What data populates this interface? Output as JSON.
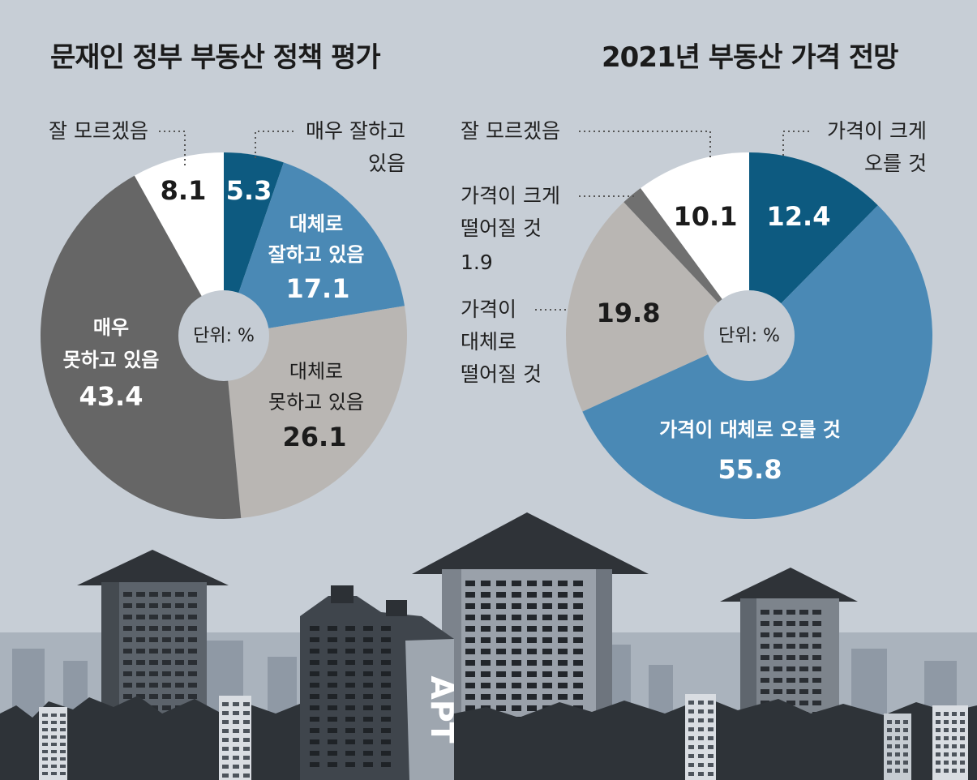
{
  "chart_data": [
    {
      "type": "pie",
      "title": "문재인 정부 부동산 정책 평가",
      "unit_label": "단위: %",
      "slices": [
        {
          "label": "매우 잘하고 있음",
          "value": 5.3,
          "value_label": "5.3",
          "color": "#0d5a80"
        },
        {
          "label": "대체로 잘하고 있음",
          "value": 17.1,
          "value_label": "17.1",
          "color": "#4a89b5"
        },
        {
          "label": "대체로 못하고 있음",
          "value": 26.1,
          "value_label": "26.1",
          "color": "#b9b6b3"
        },
        {
          "label": "매우 못하고 있음",
          "value": 43.4,
          "value_label": "43.4",
          "color": "#666666"
        },
        {
          "label": "잘 모르겠음",
          "value": 8.1,
          "value_label": "8.1",
          "color": "#ffffff"
        }
      ],
      "label_lines": {
        "매우 잘하고 있음": [
          "매우 잘하고",
          "있음"
        ],
        "대체로 잘하고 있음": [
          "대체로",
          "잘하고 있음"
        ],
        "대체로 못하고 있음": [
          "대체로",
          "못하고 있음"
        ],
        "매우 못하고 있음": [
          "매우",
          "못하고 있음"
        ],
        "잘 모르겠음": [
          "잘 모르겠음"
        ]
      }
    },
    {
      "type": "pie",
      "title": "2021년 부동산 가격 전망",
      "unit_label": "단위: %",
      "slices": [
        {
          "label": "가격이 크게 오를 것",
          "value": 12.4,
          "value_label": "12.4",
          "color": "#0d5a80"
        },
        {
          "label": "가격이 대체로 오를 것",
          "value": 55.8,
          "value_label": "55.8",
          "color": "#4a89b5"
        },
        {
          "label": "가격이 대체로 떨어질 것",
          "value": 19.8,
          "value_label": "19.8",
          "color": "#b9b6b3"
        },
        {
          "label": "가격이 크게 떨어질 것",
          "value": 1.9,
          "value_label": "1.9",
          "color": "#707070"
        },
        {
          "label": "잘 모르겠음",
          "value": 10.1,
          "value_label": "10.1",
          "color": "#ffffff"
        }
      ],
      "label_lines": {
        "가격이 크게 오를 것": [
          "가격이 크게",
          "오를 것"
        ],
        "가격이 대체로 오를 것": [
          "가격이 대체로 오를 것"
        ],
        "가격이 대체로 떨어질 것": [
          "가격이",
          "대체로",
          "떨어질 것"
        ],
        "가격이 크게 떨어질 것": [
          "가격이 크게",
          "떨어질 것"
        ],
        "잘 모르겠음": [
          "잘 모르겠음"
        ]
      }
    }
  ],
  "building_sign": "APT"
}
